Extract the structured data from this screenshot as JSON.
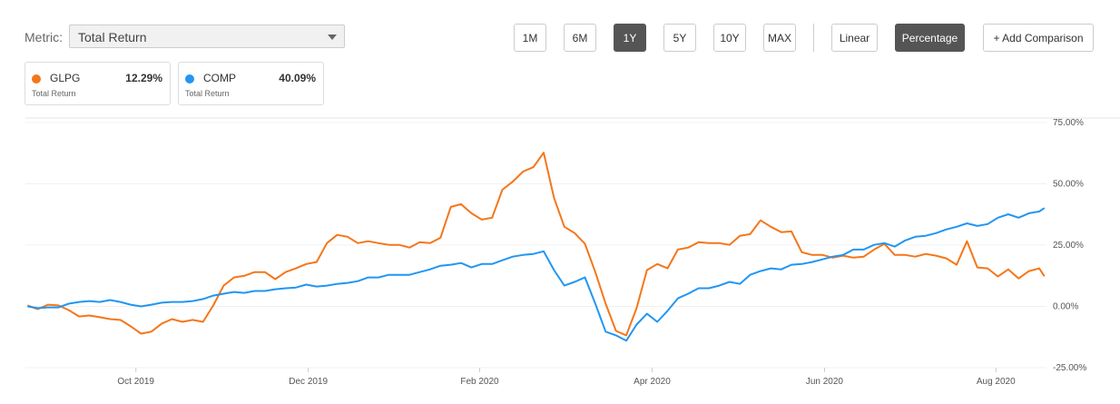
{
  "metric_label": "Metric:",
  "metric_select": "Total Return",
  "range_buttons": [
    "1M",
    "6M",
    "1Y",
    "5Y",
    "10Y",
    "MAX"
  ],
  "active_range": "1Y",
  "scale_buttons": [
    "Linear",
    "Percentage"
  ],
  "active_scale": "Percentage",
  "add_comparison": "+ Add Comparison",
  "chart_data": {
    "type": "line",
    "x": [
      2019.645,
      2019.655,
      2019.665,
      2019.675,
      2019.685,
      2019.695,
      2019.705,
      2019.715,
      2019.725,
      2019.735,
      2019.745,
      2019.755,
      2019.765,
      2019.775,
      2019.785,
      2019.795,
      2019.805,
      2019.815,
      2019.825,
      2019.835,
      2019.845,
      2019.855,
      2019.865,
      2019.875,
      2019.885,
      2019.895,
      2019.905,
      2019.915,
      2019.925,
      2019.935,
      2019.945,
      2019.955,
      2019.965,
      2019.975,
      2019.985,
      2019.995,
      2020.005,
      2020.015,
      2020.025,
      2020.035,
      2020.045,
      2020.055,
      2020.065,
      2020.075,
      2020.085,
      2020.095,
      2020.105,
      2020.115,
      2020.125,
      2020.135,
      2020.145,
      2020.155,
      2020.165,
      2020.175,
      2020.185,
      2020.195,
      2020.205,
      2020.215,
      2020.225,
      2020.235,
      2020.245,
      2020.255,
      2020.265,
      2020.275,
      2020.285,
      2020.295,
      2020.305,
      2020.315,
      2020.325,
      2020.335,
      2020.345,
      2020.355,
      2020.365,
      2020.375,
      2020.385,
      2020.395,
      2020.405,
      2020.415,
      2020.425,
      2020.435,
      2020.445,
      2020.455,
      2020.465,
      2020.475,
      2020.485,
      2020.495,
      2020.505,
      2020.515,
      2020.525,
      2020.535,
      2020.545,
      2020.555,
      2020.565,
      2020.575,
      2020.585,
      2020.595,
      2020.605,
      2020.615,
      2020.625,
      2020.63
    ],
    "xlim": [
      2019.643,
      2020.632
    ],
    "xticks": [
      {
        "value": 2019.75,
        "label": "Oct 2019"
      },
      {
        "value": 2019.917,
        "label": "Dec 2019"
      },
      {
        "value": 2020.083,
        "label": "Feb 2020"
      },
      {
        "value": 2020.25,
        "label": "Apr 2020"
      },
      {
        "value": 2020.417,
        "label": "Jun 2020"
      },
      {
        "value": 2020.583,
        "label": "Aug 2020"
      }
    ],
    "ylim": [
      -25,
      75
    ],
    "yticks": [
      {
        "value": -25,
        "label": "-25.00%"
      },
      {
        "value": 0,
        "label": "0.00%"
      },
      {
        "value": 25,
        "label": "25.00%"
      },
      {
        "value": 50,
        "label": "50.00%"
      },
      {
        "value": 75,
        "label": "75.00%"
      }
    ],
    "grid": true,
    "series": [
      {
        "name": "GLPG",
        "color": "#f5761a",
        "legend_label": "Total Return",
        "last_value": {
          "value": 12.29,
          "label": "12.29%"
        },
        "values": [
          0.4,
          -1.1,
          0.7,
          0.4,
          -1.5,
          -4.1,
          -3.7,
          -4.4,
          -5.2,
          -5.5,
          -8.1,
          -11.1,
          -10.3,
          -7.0,
          -5.2,
          -6.3,
          -5.5,
          -6.3,
          0.4,
          8.5,
          11.8,
          12.5,
          14.0,
          14.0,
          11.1,
          14.0,
          15.5,
          17.3,
          18.1,
          25.8,
          29.2,
          28.4,
          25.8,
          26.6,
          25.8,
          25.1,
          25.1,
          24.0,
          26.2,
          25.8,
          28.0,
          40.6,
          41.7,
          38.0,
          35.4,
          36.2,
          47.6,
          50.9,
          55.0,
          56.8,
          62.7,
          44.3,
          32.5,
          29.9,
          25.5,
          14.0,
          1.1,
          -10.0,
          -11.8,
          -0.7,
          14.8,
          17.3,
          15.5,
          23.2,
          24.0,
          26.2,
          25.8,
          25.8,
          25.1,
          28.8,
          29.5,
          35.1,
          32.5,
          30.3,
          30.6,
          22.1,
          21.0,
          21.0,
          19.9,
          20.7,
          19.9,
          20.3,
          23.2,
          25.5,
          21.0,
          21.0,
          20.3,
          21.4,
          20.7,
          19.6,
          17.0,
          26.6,
          15.9,
          15.5,
          12.2,
          15.1,
          11.4,
          14.4,
          15.5,
          12.3
        ]
      },
      {
        "name": "COMP",
        "color": "#2196f3",
        "legend_label": "Total Return",
        "last_value": {
          "value": 40.09,
          "label": "40.09%"
        },
        "values": [
          0.0,
          -0.7,
          -0.4,
          -0.4,
          1.1,
          1.8,
          2.2,
          1.8,
          2.6,
          1.8,
          0.7,
          0.0,
          0.7,
          1.5,
          1.8,
          1.8,
          2.2,
          3.0,
          4.4,
          5.2,
          5.9,
          5.5,
          6.3,
          6.3,
          7.0,
          7.4,
          7.7,
          8.9,
          8.1,
          8.5,
          9.2,
          9.6,
          10.3,
          11.8,
          11.8,
          12.9,
          12.9,
          12.9,
          14.0,
          15.1,
          16.6,
          17.0,
          17.7,
          15.9,
          17.3,
          17.3,
          18.8,
          20.3,
          21.0,
          21.4,
          22.5,
          14.8,
          8.5,
          10.0,
          11.8,
          1.1,
          -10.3,
          -11.8,
          -14.0,
          -7.4,
          -3.0,
          -6.3,
          -1.8,
          3.3,
          5.2,
          7.4,
          7.4,
          8.5,
          10.0,
          9.2,
          12.9,
          14.4,
          15.5,
          15.1,
          17.0,
          17.3,
          18.1,
          19.2,
          20.3,
          21.0,
          23.2,
          23.2,
          25.1,
          25.8,
          24.4,
          26.9,
          28.4,
          28.8,
          29.9,
          31.4,
          32.5,
          33.9,
          32.8,
          33.6,
          36.2,
          37.6,
          36.2,
          38.0,
          38.7,
          40.1
        ]
      }
    ]
  }
}
